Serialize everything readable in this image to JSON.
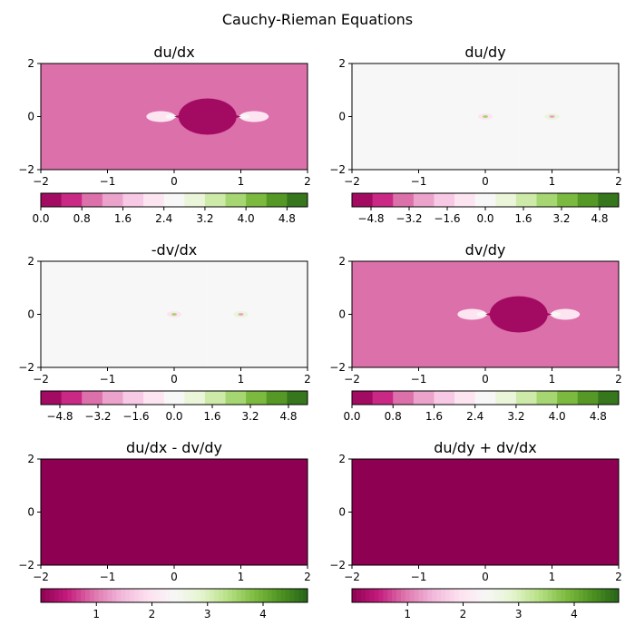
{
  "figure": {
    "title": "Cauchy-Rieman Equations"
  },
  "colors": {
    "piyg_stops": [
      "#8e0152",
      "#c51b7d",
      "#de77ae",
      "#f1b6da",
      "#fde0ef",
      "#f7f7f7",
      "#e6f5d0",
      "#b8e186",
      "#7fbc41",
      "#4d9221",
      "#276419"
    ]
  },
  "chart_data": [
    {
      "type": "heatmap",
      "title": "du/dx",
      "xlim": [
        -2,
        2
      ],
      "ylim": [
        -2,
        2
      ],
      "xticks": [
        "−2",
        "−1",
        "0",
        "1",
        "2"
      ],
      "yticks": [
        "2",
        "0",
        "−2"
      ],
      "pattern": "lens",
      "background_value": 1.0,
      "colorbar": {
        "mode": "discrete",
        "range": [
          0.0,
          5.2
        ],
        "ticks": [
          "0.0",
          "0.8",
          "1.6",
          "2.4",
          "3.2",
          "4.0",
          "4.8"
        ]
      }
    },
    {
      "type": "heatmap",
      "title": "du/dy",
      "xlim": [
        -2,
        2
      ],
      "ylim": [
        -2,
        2
      ],
      "xticks": [
        "−2",
        "−1",
        "0",
        "1",
        "2"
      ],
      "yticks": [
        "2",
        "0",
        "−2"
      ],
      "pattern": "quadrants",
      "quadrant_values": {
        "top_left": -0.4,
        "top_right": 0.4,
        "bottom_left": 0.4,
        "bottom_right": -0.4
      },
      "colorbar": {
        "mode": "discrete",
        "range": [
          -5.6,
          5.6
        ],
        "ticks": [
          "−4.8",
          "−3.2",
          "−1.6",
          "0.0",
          "1.6",
          "3.2",
          "4.8"
        ]
      }
    },
    {
      "type": "heatmap",
      "title": "-dv/dx",
      "xlim": [
        -2,
        2
      ],
      "ylim": [
        -2,
        2
      ],
      "xticks": [
        "−2",
        "−1",
        "0",
        "1",
        "2"
      ],
      "yticks": [
        "2",
        "0",
        "−2"
      ],
      "pattern": "quadrants",
      "quadrant_values": {
        "top_left": -0.4,
        "top_right": 0.4,
        "bottom_left": 0.4,
        "bottom_right": -0.4
      },
      "colorbar": {
        "mode": "discrete",
        "range": [
          -5.6,
          5.6
        ],
        "ticks": [
          "−4.8",
          "−3.2",
          "−1.6",
          "0.0",
          "1.6",
          "3.2",
          "4.8"
        ]
      }
    },
    {
      "type": "heatmap",
      "title": "dv/dy",
      "xlim": [
        -2,
        2
      ],
      "ylim": [
        -2,
        2
      ],
      "xticks": [
        "−2",
        "−1",
        "0",
        "1",
        "2"
      ],
      "yticks": [
        "2",
        "0",
        "−2"
      ],
      "pattern": "lens",
      "background_value": 1.0,
      "colorbar": {
        "mode": "discrete",
        "range": [
          0.0,
          5.2
        ],
        "ticks": [
          "0.0",
          "0.8",
          "1.6",
          "2.4",
          "3.2",
          "4.0",
          "4.8"
        ]
      }
    },
    {
      "type": "heatmap",
      "title": "du/dx - dv/dy",
      "xlim": [
        -2,
        2
      ],
      "ylim": [
        -2,
        2
      ],
      "xticks": [
        "−2",
        "−1",
        "0",
        "1",
        "2"
      ],
      "yticks": [
        "2",
        "0",
        "−2"
      ],
      "pattern": "uniform",
      "background_value": 0.0,
      "colorbar": {
        "mode": "continuous",
        "range": [
          0.0,
          4.8
        ],
        "ticks": [
          "1",
          "2",
          "3",
          "4"
        ]
      }
    },
    {
      "type": "heatmap",
      "title": "du/dy + dv/dx",
      "xlim": [
        -2,
        2
      ],
      "ylim": [
        -2,
        2
      ],
      "xticks": [
        "−2",
        "−1",
        "0",
        "1",
        "2"
      ],
      "yticks": [
        "2",
        "0",
        "−2"
      ],
      "pattern": "uniform",
      "background_value": 0.0,
      "colorbar": {
        "mode": "continuous",
        "range": [
          0.0,
          4.8
        ],
        "ticks": [
          "1",
          "2",
          "3",
          "4"
        ]
      }
    }
  ]
}
